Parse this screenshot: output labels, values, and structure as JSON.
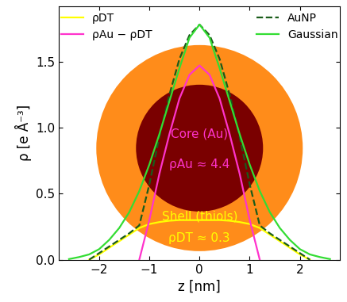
{
  "chart_data": {
    "type": "line",
    "x_label": "z [nm]",
    "y_label": "ρ [e Å⁻³]",
    "x": [
      -2.6,
      -2.4,
      -2.2,
      -2.0,
      -1.8,
      -1.6,
      -1.4,
      -1.2,
      -1.0,
      -0.8,
      -0.6,
      -0.4,
      -0.2,
      0.0,
      0.2,
      0.4,
      0.6,
      0.8,
      1.0,
      1.2,
      1.4,
      1.6,
      1.8,
      2.0,
      2.2,
      2.4,
      2.6
    ],
    "series": [
      {
        "name": "ρDT",
        "color": "#ffff00",
        "line_style": "solid",
        "values": [
          null,
          null,
          0.0,
          0.04,
          0.09,
          0.14,
          0.19,
          0.24,
          0.27,
          0.285,
          0.295,
          0.3,
          0.3,
          0.3,
          0.3,
          0.3,
          0.295,
          0.285,
          0.27,
          0.24,
          0.19,
          0.14,
          0.09,
          0.04,
          0.0,
          null,
          null
        ]
      },
      {
        "name": "ρAu − ρDT",
        "color": "#ff33cc",
        "line_style": "solid",
        "values": [
          null,
          null,
          null,
          null,
          null,
          null,
          null,
          0.0,
          0.3,
          0.65,
          0.95,
          1.22,
          1.4,
          1.47,
          1.4,
          1.22,
          0.95,
          0.65,
          0.3,
          0.0,
          null,
          null,
          null,
          null,
          null,
          null,
          null
        ]
      },
      {
        "name": "AuNP",
        "color": "#1a5c1a",
        "line_style": "dashed",
        "values": [
          null,
          null,
          0.0,
          0.05,
          0.1,
          0.15,
          0.2,
          0.26,
          0.57,
          0.93,
          1.25,
          1.52,
          1.7,
          1.78,
          1.7,
          1.52,
          1.25,
          0.93,
          0.57,
          0.26,
          0.2,
          0.15,
          0.1,
          0.05,
          0.0,
          null,
          null
        ]
      },
      {
        "name": "Gaussian",
        "color": "#33dd33",
        "line_style": "solid",
        "values": [
          0.005,
          0.02,
          0.04,
          0.08,
          0.15,
          0.24,
          0.36,
          0.52,
          0.72,
          0.95,
          1.2,
          1.45,
          1.68,
          1.78,
          1.68,
          1.45,
          1.2,
          0.95,
          0.72,
          0.52,
          0.36,
          0.24,
          0.15,
          0.08,
          0.04,
          0.02,
          0.005
        ]
      }
    ],
    "annotations": [
      "Core (Au)",
      "ρAu ≈ 4.4",
      "Shell (thiols)",
      "ρDT ≈ 0.3"
    ],
    "xlim": [
      -2.8,
      2.8
    ],
    "xticks": [
      {
        "value": -2,
        "label": "−2"
      },
      {
        "value": -1,
        "label": "−1"
      },
      0,
      1,
      2
    ],
    "ylim": [
      0,
      1.92
    ],
    "yticks": [
      {
        "value": 0,
        "label": "0.0"
      },
      {
        "value": 0.5,
        "label": "0.5"
      },
      {
        "value": 1.0,
        "label": "1.0"
      },
      {
        "value": 1.5,
        "label": "1.5"
      }
    ],
    "legend": "upper center",
    "grid": false
  }
}
